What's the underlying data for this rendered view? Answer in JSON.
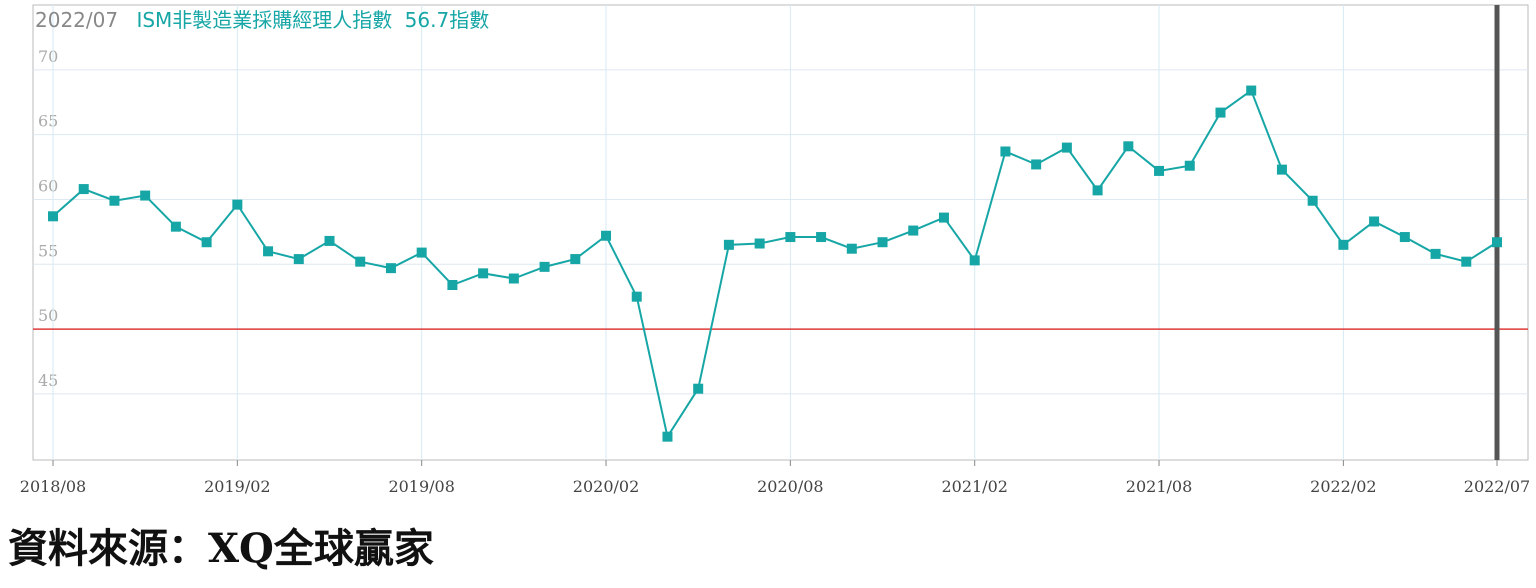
{
  "chart_data": {
    "type": "line",
    "header_date": "2022/07",
    "unit": "指數",
    "categories": [
      "2018/08",
      "2018/09",
      "2018/10",
      "2018/11",
      "2018/12",
      "2019/01",
      "2019/02",
      "2019/03",
      "2019/04",
      "2019/05",
      "2019/06",
      "2019/07",
      "2019/08",
      "2019/09",
      "2019/10",
      "2019/11",
      "2019/12",
      "2020/01",
      "2020/02",
      "2020/03",
      "2020/04",
      "2020/05",
      "2020/06",
      "2020/07",
      "2020/08",
      "2020/09",
      "2020/10",
      "2020/11",
      "2020/12",
      "2021/01",
      "2021/02",
      "2021/03",
      "2021/04",
      "2021/05",
      "2021/06",
      "2021/07",
      "2021/08",
      "2021/09",
      "2021/10",
      "2021/11",
      "2021/12",
      "2022/01",
      "2022/02",
      "2022/03",
      "2022/04",
      "2022/05",
      "2022/06",
      "2022/07"
    ],
    "series": [
      {
        "name": "ISM非製造業採購經理人指數",
        "color": "#17a6a6",
        "values": [
          58.7,
          60.8,
          59.9,
          60.3,
          57.9,
          56.7,
          59.6,
          56.0,
          55.4,
          56.8,
          55.2,
          54.7,
          55.9,
          53.4,
          54.3,
          53.9,
          54.8,
          55.4,
          57.2,
          52.5,
          41.7,
          45.4,
          56.5,
          56.6,
          57.1,
          57.1,
          56.2,
          56.7,
          57.6,
          58.6,
          55.3,
          63.7,
          62.7,
          64.0,
          60.7,
          64.1,
          62.2,
          62.6,
          66.7,
          68.4,
          62.3,
          59.9,
          56.5,
          58.3,
          57.1,
          55.8,
          55.2,
          56.7
        ]
      }
    ],
    "ylim": [
      39.9,
      75
    ],
    "yticks": [
      45,
      50,
      55,
      60,
      65,
      70
    ],
    "grid": true,
    "reference_line": {
      "value": 50,
      "color": "#e03a3a"
    },
    "source": "資料來源：XQ全球贏家"
  }
}
